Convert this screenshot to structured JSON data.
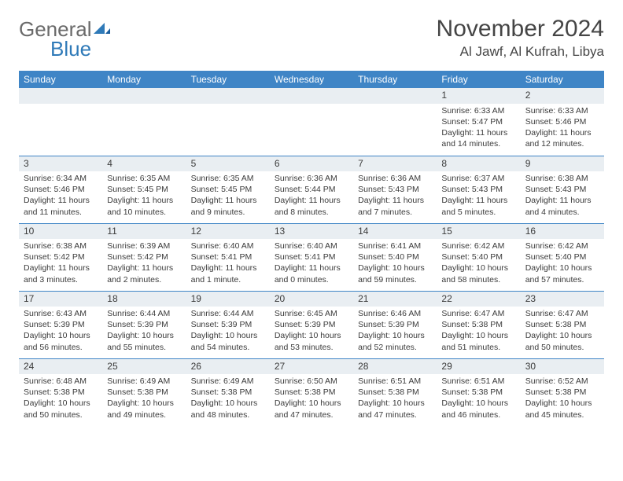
{
  "logo": {
    "line1": "General",
    "line2": "Blue"
  },
  "title": "November 2024",
  "location": "Al Jawf, Al Kufrah, Libya",
  "colors": {
    "header_bg": "#3f85c6",
    "header_text": "#ffffff",
    "border": "#3f85c6",
    "daynum_bg": "#e9eef2",
    "text": "#3b3b3b",
    "logo_gray": "#6a6a6a",
    "logo_blue": "#2f7ab8"
  },
  "weekdays": [
    "Sunday",
    "Monday",
    "Tuesday",
    "Wednesday",
    "Thursday",
    "Friday",
    "Saturday"
  ],
  "weeks": [
    [
      null,
      null,
      null,
      null,
      null,
      {
        "num": "1",
        "sunrise": "6:33 AM",
        "sunset": "5:47 PM",
        "daylight": "11 hours and 14 minutes."
      },
      {
        "num": "2",
        "sunrise": "6:33 AM",
        "sunset": "5:46 PM",
        "daylight": "11 hours and 12 minutes."
      }
    ],
    [
      {
        "num": "3",
        "sunrise": "6:34 AM",
        "sunset": "5:46 PM",
        "daylight": "11 hours and 11 minutes."
      },
      {
        "num": "4",
        "sunrise": "6:35 AM",
        "sunset": "5:45 PM",
        "daylight": "11 hours and 10 minutes."
      },
      {
        "num": "5",
        "sunrise": "6:35 AM",
        "sunset": "5:45 PM",
        "daylight": "11 hours and 9 minutes."
      },
      {
        "num": "6",
        "sunrise": "6:36 AM",
        "sunset": "5:44 PM",
        "daylight": "11 hours and 8 minutes."
      },
      {
        "num": "7",
        "sunrise": "6:36 AM",
        "sunset": "5:43 PM",
        "daylight": "11 hours and 7 minutes."
      },
      {
        "num": "8",
        "sunrise": "6:37 AM",
        "sunset": "5:43 PM",
        "daylight": "11 hours and 5 minutes."
      },
      {
        "num": "9",
        "sunrise": "6:38 AM",
        "sunset": "5:43 PM",
        "daylight": "11 hours and 4 minutes."
      }
    ],
    [
      {
        "num": "10",
        "sunrise": "6:38 AM",
        "sunset": "5:42 PM",
        "daylight": "11 hours and 3 minutes."
      },
      {
        "num": "11",
        "sunrise": "6:39 AM",
        "sunset": "5:42 PM",
        "daylight": "11 hours and 2 minutes."
      },
      {
        "num": "12",
        "sunrise": "6:40 AM",
        "sunset": "5:41 PM",
        "daylight": "11 hours and 1 minute."
      },
      {
        "num": "13",
        "sunrise": "6:40 AM",
        "sunset": "5:41 PM",
        "daylight": "11 hours and 0 minutes."
      },
      {
        "num": "14",
        "sunrise": "6:41 AM",
        "sunset": "5:40 PM",
        "daylight": "10 hours and 59 minutes."
      },
      {
        "num": "15",
        "sunrise": "6:42 AM",
        "sunset": "5:40 PM",
        "daylight": "10 hours and 58 minutes."
      },
      {
        "num": "16",
        "sunrise": "6:42 AM",
        "sunset": "5:40 PM",
        "daylight": "10 hours and 57 minutes."
      }
    ],
    [
      {
        "num": "17",
        "sunrise": "6:43 AM",
        "sunset": "5:39 PM",
        "daylight": "10 hours and 56 minutes."
      },
      {
        "num": "18",
        "sunrise": "6:44 AM",
        "sunset": "5:39 PM",
        "daylight": "10 hours and 55 minutes."
      },
      {
        "num": "19",
        "sunrise": "6:44 AM",
        "sunset": "5:39 PM",
        "daylight": "10 hours and 54 minutes."
      },
      {
        "num": "20",
        "sunrise": "6:45 AM",
        "sunset": "5:39 PM",
        "daylight": "10 hours and 53 minutes."
      },
      {
        "num": "21",
        "sunrise": "6:46 AM",
        "sunset": "5:39 PM",
        "daylight": "10 hours and 52 minutes."
      },
      {
        "num": "22",
        "sunrise": "6:47 AM",
        "sunset": "5:38 PM",
        "daylight": "10 hours and 51 minutes."
      },
      {
        "num": "23",
        "sunrise": "6:47 AM",
        "sunset": "5:38 PM",
        "daylight": "10 hours and 50 minutes."
      }
    ],
    [
      {
        "num": "24",
        "sunrise": "6:48 AM",
        "sunset": "5:38 PM",
        "daylight": "10 hours and 50 minutes."
      },
      {
        "num": "25",
        "sunrise": "6:49 AM",
        "sunset": "5:38 PM",
        "daylight": "10 hours and 49 minutes."
      },
      {
        "num": "26",
        "sunrise": "6:49 AM",
        "sunset": "5:38 PM",
        "daylight": "10 hours and 48 minutes."
      },
      {
        "num": "27",
        "sunrise": "6:50 AM",
        "sunset": "5:38 PM",
        "daylight": "10 hours and 47 minutes."
      },
      {
        "num": "28",
        "sunrise": "6:51 AM",
        "sunset": "5:38 PM",
        "daylight": "10 hours and 47 minutes."
      },
      {
        "num": "29",
        "sunrise": "6:51 AM",
        "sunset": "5:38 PM",
        "daylight": "10 hours and 46 minutes."
      },
      {
        "num": "30",
        "sunrise": "6:52 AM",
        "sunset": "5:38 PM",
        "daylight": "10 hours and 45 minutes."
      }
    ]
  ]
}
